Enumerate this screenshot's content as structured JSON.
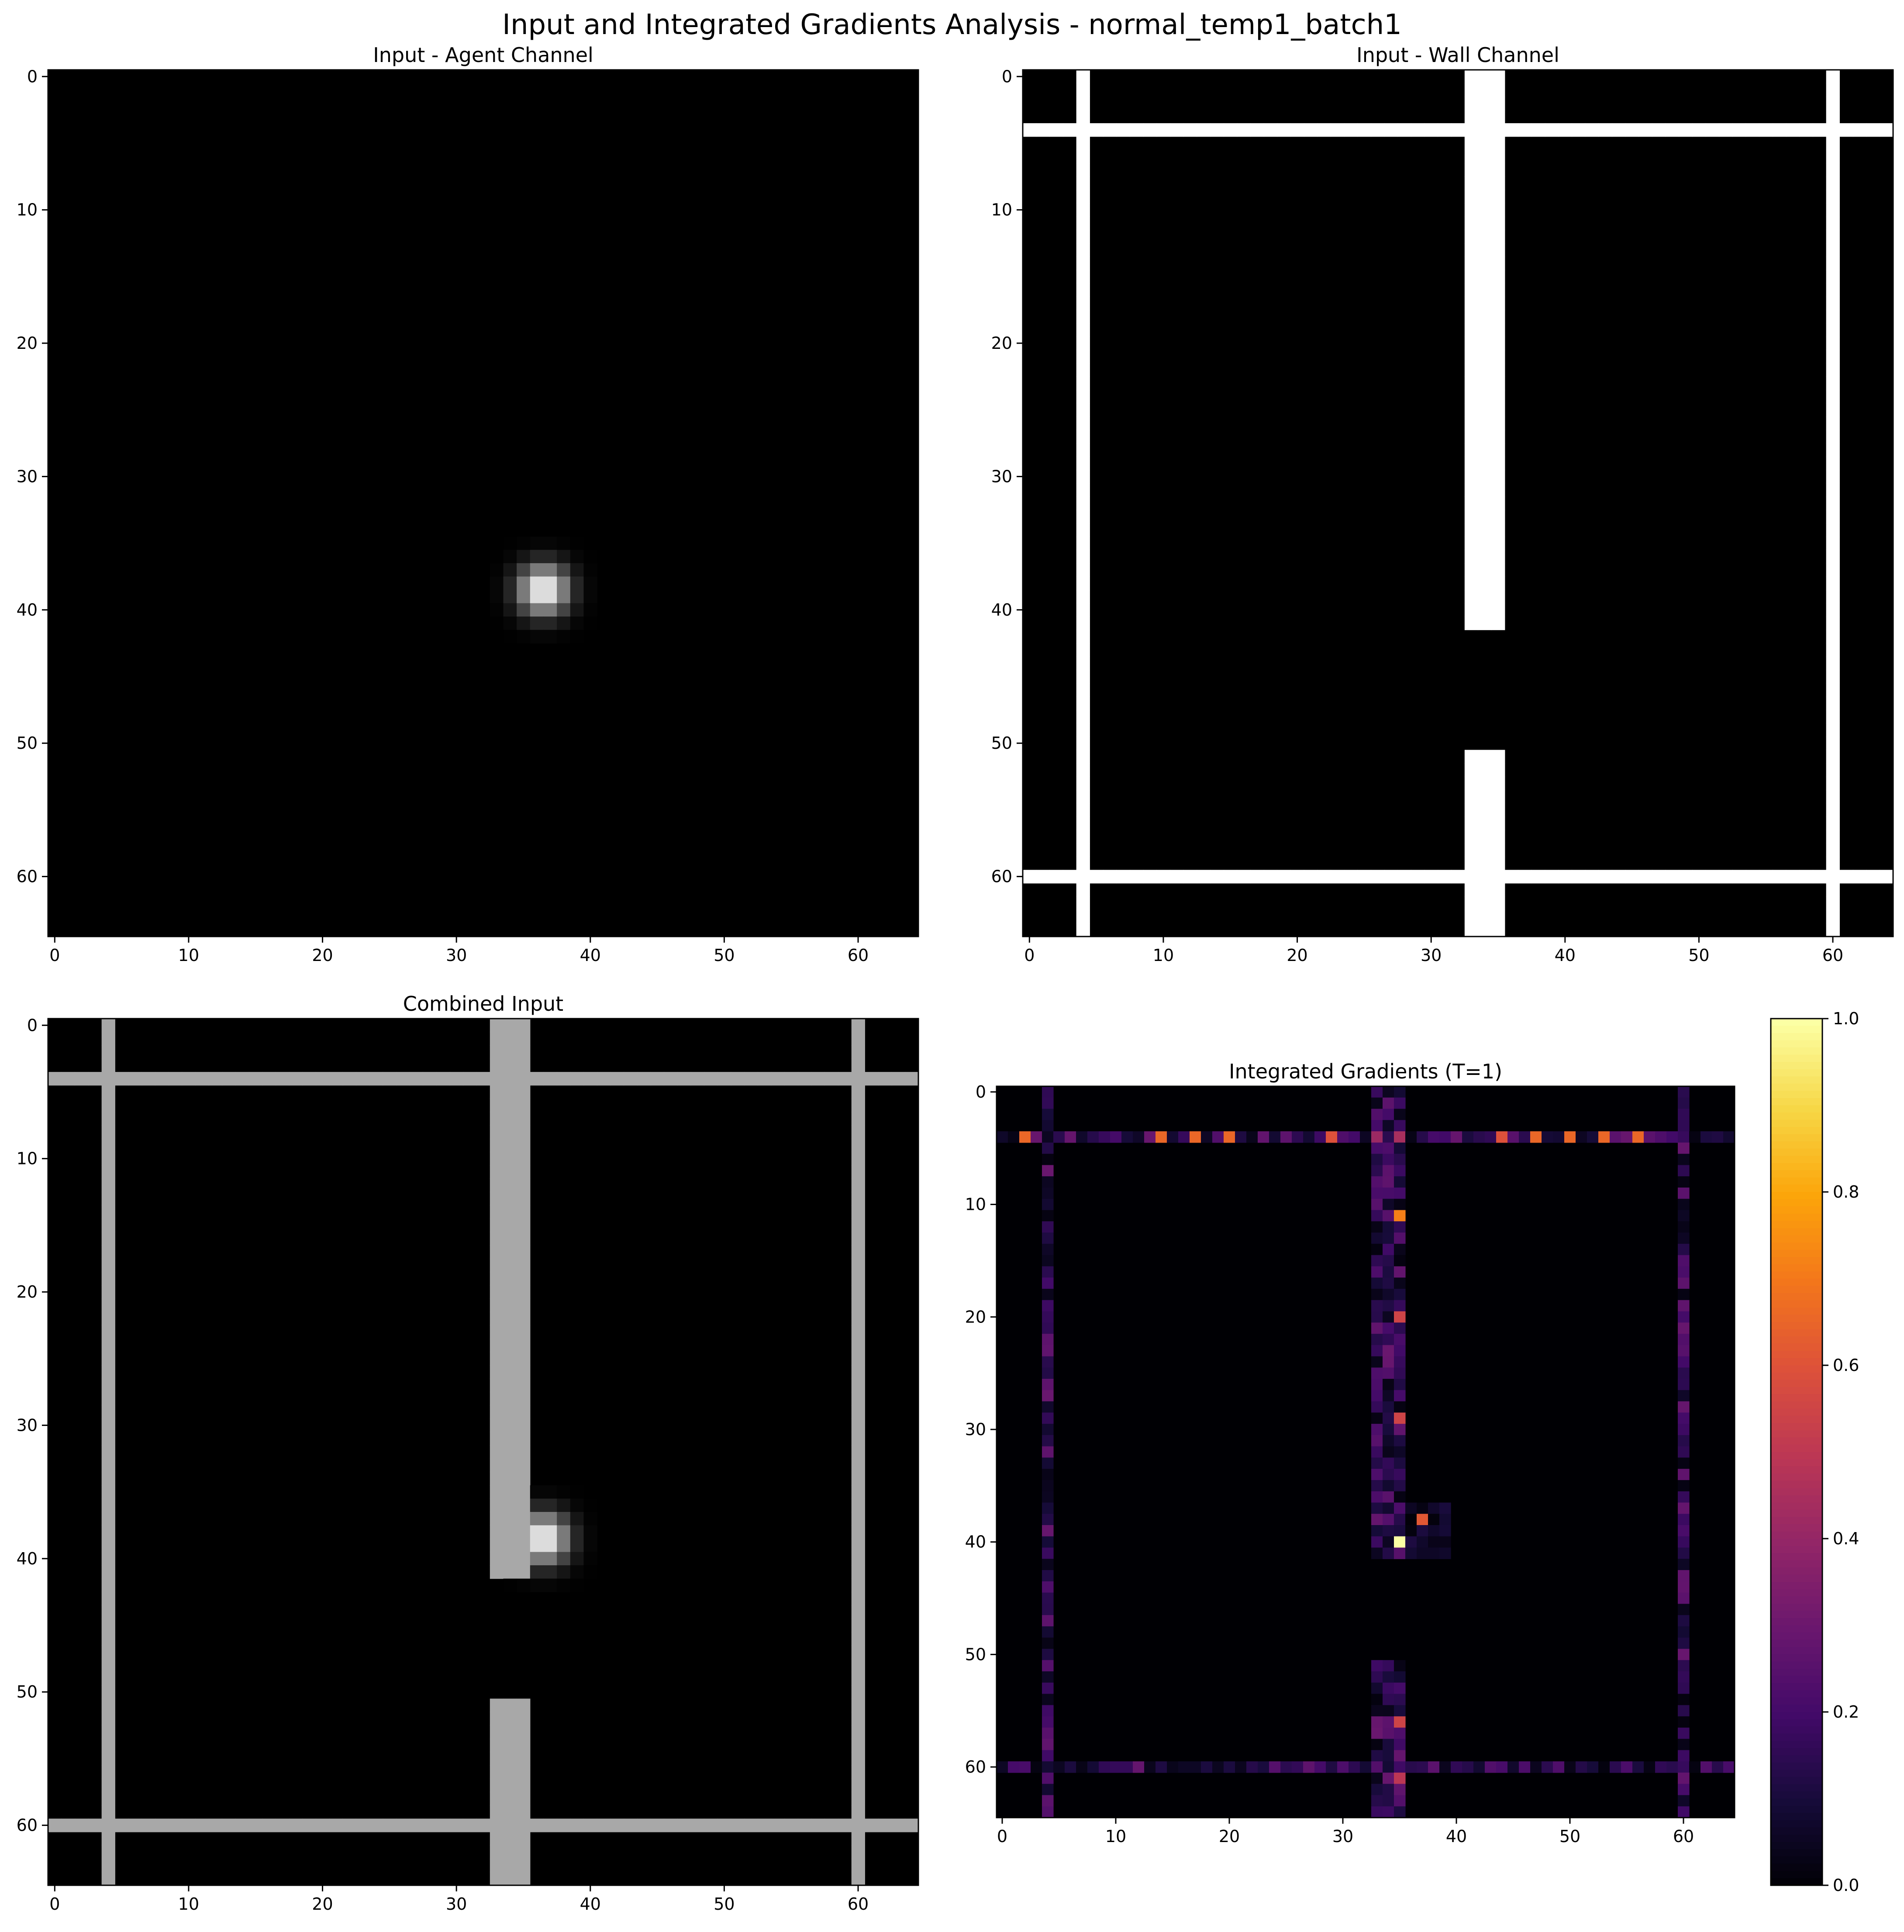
{
  "figure": {
    "title": "Input and Integrated Gradients Analysis - normal_temp1_batch1"
  },
  "chart_data": [
    {
      "type": "heatmap",
      "title": "Input - Agent Channel",
      "colormap": "gray",
      "grid_size": 65,
      "xlim": [
        -0.5,
        64.5
      ],
      "ylim": [
        64.5,
        -0.5
      ],
      "xticks": [
        0,
        10,
        20,
        30,
        40,
        50,
        60
      ],
      "yticks": [
        0,
        10,
        20,
        30,
        40,
        50,
        60
      ],
      "agent_blob": {
        "center_row": 38.5,
        "center_col": 36.5,
        "sigma": 1.3,
        "peak": 1.0
      }
    },
    {
      "type": "heatmap",
      "title": "Input - Wall Channel",
      "colormap": "gray",
      "grid_size": 65,
      "xlim": [
        -0.5,
        64.5
      ],
      "ylim": [
        64.5,
        -0.5
      ],
      "xticks": [
        0,
        10,
        20,
        30,
        40,
        50,
        60
      ],
      "yticks": [
        0,
        10,
        20,
        30,
        40,
        50,
        60
      ],
      "walls": {
        "rows": [
          4,
          60
        ],
        "cols": [
          4,
          60
        ],
        "center_col_band": [
          33,
          35
        ],
        "center_gap_rows": [
          42,
          50
        ]
      }
    },
    {
      "type": "heatmap",
      "title": "Combined Input",
      "colormap": "gray",
      "grid_size": 65,
      "wall_value": 0.66,
      "xlim": [
        -0.5,
        64.5
      ],
      "ylim": [
        64.5,
        -0.5
      ],
      "xticks": [
        0,
        10,
        20,
        30,
        40,
        50,
        60
      ],
      "yticks": [
        0,
        10,
        20,
        30,
        40,
        50,
        60
      ]
    },
    {
      "type": "heatmap",
      "title": "Integrated Gradients (T=1)",
      "colormap": "inferno",
      "grid_size": 65,
      "xlim": [
        -0.5,
        64.5
      ],
      "ylim": [
        64.5,
        -0.5
      ],
      "xticks": [
        0,
        10,
        20,
        30,
        40,
        50,
        60
      ],
      "yticks": [
        0,
        10,
        20,
        30,
        40,
        50,
        60
      ],
      "colorbar": {
        "min": 0.0,
        "max": 1.0,
        "ticks": [
          "0.0",
          "0.2",
          "0.4",
          "0.6",
          "0.8",
          "1.0"
        ]
      },
      "hotspots": [
        {
          "row": 40,
          "col": 35,
          "value": 1.0
        },
        {
          "row": 38,
          "col": 37,
          "value": 0.62
        },
        {
          "row": 11,
          "col": 35,
          "value": 0.72
        },
        {
          "row": 4,
          "col": 2,
          "value": 0.66
        },
        {
          "row": 4,
          "col": 14,
          "value": 0.66
        },
        {
          "row": 4,
          "col": 17,
          "value": 0.66
        },
        {
          "row": 4,
          "col": 20,
          "value": 0.66
        },
        {
          "row": 4,
          "col": 47,
          "value": 0.66
        },
        {
          "row": 4,
          "col": 50,
          "value": 0.66
        },
        {
          "row": 4,
          "col": 53,
          "value": 0.66
        },
        {
          "row": 4,
          "col": 56,
          "value": 0.66
        },
        {
          "row": 4,
          "col": 29,
          "value": 0.6
        },
        {
          "row": 4,
          "col": 44,
          "value": 0.6
        },
        {
          "row": 20,
          "col": 35,
          "value": 0.55
        },
        {
          "row": 29,
          "col": 35,
          "value": 0.55
        },
        {
          "row": 56,
          "col": 35,
          "value": 0.55
        },
        {
          "row": 61,
          "col": 35,
          "value": 0.5
        },
        {
          "row": 4,
          "col": 33,
          "value": 0.42
        },
        {
          "row": 4,
          "col": 35,
          "value": 0.45
        }
      ]
    }
  ]
}
